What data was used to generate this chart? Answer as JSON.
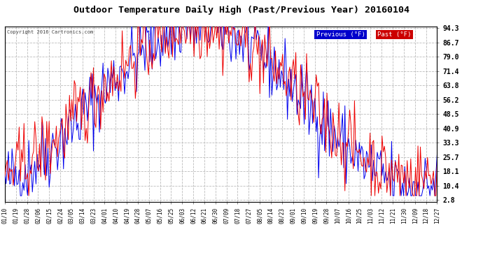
{
  "title": "Outdoor Temperature Daily High (Past/Previous Year) 20160104",
  "copyright": "Copyright 2016 Cartronics.com",
  "legend_previous_label": "Previous (°F)",
  "legend_past_label": "Past (°F)",
  "legend_previous_color": "#0000ee",
  "legend_past_color": "#ee0000",
  "legend_previous_bg": "#0000cc",
  "legend_past_bg": "#cc0000",
  "plot_bg_color": "#ffffff",
  "fig_bg_color": "#ffffff",
  "title_color": "#000000",
  "yticks": [
    2.8,
    10.4,
    18.1,
    25.7,
    33.3,
    40.9,
    48.5,
    56.2,
    63.8,
    71.4,
    79.0,
    86.7,
    94.3
  ],
  "ylim": [
    2.8,
    94.3
  ],
  "grid_color": "#bbbbbb",
  "line_width": 0.7,
  "xtick_labels": [
    "01/10",
    "01/19",
    "01/28",
    "02/06",
    "02/15",
    "02/24",
    "03/05",
    "03/14",
    "03/23",
    "04/01",
    "04/10",
    "04/19",
    "04/28",
    "05/07",
    "05/16",
    "05/25",
    "06/03",
    "06/12",
    "06/21",
    "06/30",
    "07/09",
    "07/18",
    "07/27",
    "08/05",
    "08/14",
    "08/23",
    "09/01",
    "09/10",
    "09/19",
    "09/28",
    "10/07",
    "10/16",
    "10/25",
    "11/03",
    "11/12",
    "11/21",
    "11/30",
    "12/09",
    "12/18",
    "12/27"
  ],
  "n_days": 362,
  "seed": 42
}
